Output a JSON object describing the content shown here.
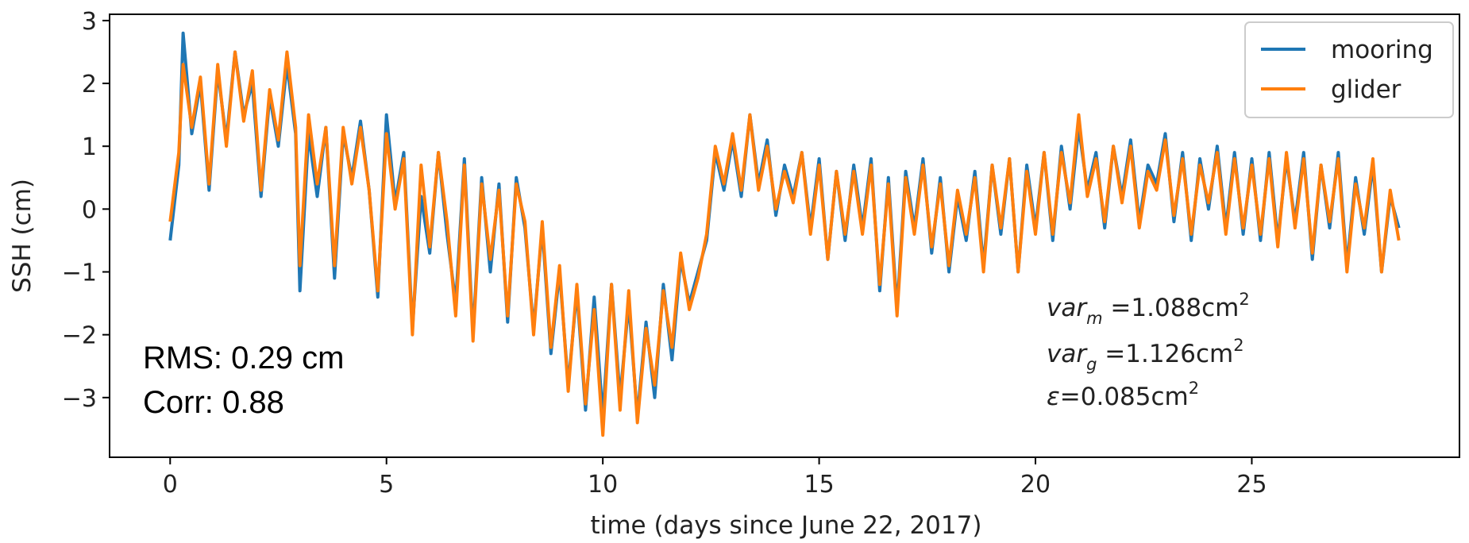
{
  "chart_data": {
    "type": "line",
    "title": "",
    "xlabel": "time (days since June 22, 2017)",
    "ylabel": "SSH (cm)",
    "xlim": [
      -1.4,
      29.8
    ],
    "ylim": [
      -3.95,
      3.1
    ],
    "xticks": [
      0,
      5,
      10,
      15,
      20,
      25
    ],
    "yticks": [
      3,
      2,
      1,
      0,
      -1,
      -2,
      -3
    ],
    "ytick_labels": [
      "3",
      "2",
      "1",
      "0",
      "−1",
      "−2",
      "−3"
    ],
    "grid": false,
    "legend_position": "top-right",
    "series": [
      {
        "name": "mooring",
        "color": "#1f77b4",
        "x": [
          0.0,
          0.2,
          0.3,
          0.5,
          0.7,
          0.9,
          1.1,
          1.3,
          1.5,
          1.7,
          1.9,
          2.1,
          2.3,
          2.5,
          2.7,
          2.9,
          3.0,
          3.2,
          3.4,
          3.6,
          3.8,
          4.0,
          4.2,
          4.4,
          4.6,
          4.8,
          5.0,
          5.2,
          5.4,
          5.6,
          5.8,
          6.0,
          6.2,
          6.4,
          6.6,
          6.8,
          7.0,
          7.2,
          7.4,
          7.6,
          7.8,
          8.0,
          8.2,
          8.4,
          8.6,
          8.8,
          9.0,
          9.2,
          9.4,
          9.6,
          9.8,
          10.0,
          10.2,
          10.4,
          10.6,
          10.8,
          11.0,
          11.2,
          11.4,
          11.6,
          11.8,
          12.0,
          12.2,
          12.4,
          12.6,
          12.8,
          13.0,
          13.2,
          13.4,
          13.6,
          13.8,
          14.0,
          14.2,
          14.4,
          14.6,
          14.8,
          15.0,
          15.2,
          15.4,
          15.6,
          15.8,
          16.0,
          16.2,
          16.4,
          16.6,
          16.8,
          17.0,
          17.2,
          17.4,
          17.6,
          17.8,
          18.0,
          18.2,
          18.4,
          18.6,
          18.8,
          19.0,
          19.2,
          19.4,
          19.6,
          19.8,
          20.0,
          20.2,
          20.4,
          20.6,
          20.8,
          21.0,
          21.2,
          21.4,
          21.6,
          21.8,
          22.0,
          22.2,
          22.4,
          22.6,
          22.8,
          23.0,
          23.2,
          23.4,
          23.6,
          23.8,
          24.0,
          24.2,
          24.4,
          24.6,
          24.8,
          25.0,
          25.2,
          25.4,
          25.6,
          25.8,
          26.0,
          26.2,
          26.4,
          26.6,
          26.8,
          27.0,
          27.2,
          27.4,
          27.6,
          27.8,
          28.0,
          28.2,
          28.4
        ],
        "y": [
          -0.5,
          0.7,
          2.8,
          1.2,
          2.0,
          0.3,
          2.2,
          1.1,
          2.5,
          1.5,
          2.0,
          0.2,
          1.8,
          1.0,
          2.3,
          1.2,
          -1.3,
          1.2,
          0.2,
          1.3,
          -1.1,
          1.2,
          0.5,
          1.4,
          0.3,
          -1.4,
          1.5,
          0.1,
          0.9,
          -1.9,
          0.2,
          -0.7,
          0.9,
          -0.4,
          -1.5,
          0.8,
          -2.0,
          0.5,
          -1.0,
          0.4,
          -1.8,
          0.5,
          -0.3,
          -1.9,
          -0.3,
          -2.3,
          -1.0,
          -2.8,
          -1.3,
          -3.2,
          -1.4,
          -3.3,
          -1.2,
          -3.0,
          -1.5,
          -3.3,
          -1.8,
          -3.0,
          -1.2,
          -2.4,
          -0.8,
          -1.5,
          -1.0,
          -0.5,
          0.9,
          0.3,
          1.1,
          0.2,
          1.5,
          0.4,
          1.1,
          -0.1,
          0.7,
          0.2,
          0.9,
          -0.3,
          0.8,
          -0.8,
          0.6,
          -0.5,
          0.7,
          -0.3,
          0.8,
          -1.3,
          0.5,
          -1.6,
          0.6,
          -0.3,
          0.8,
          -0.7,
          0.5,
          -1.0,
          0.2,
          -0.5,
          0.6,
          -0.9,
          0.7,
          -0.4,
          0.8,
          -1.0,
          0.7,
          -0.3,
          0.9,
          -0.5,
          1.0,
          0.0,
          1.3,
          0.3,
          0.9,
          -0.3,
          1.0,
          0.2,
          1.1,
          -0.2,
          0.7,
          0.4,
          1.2,
          -0.2,
          0.9,
          -0.5,
          0.8,
          0.0,
          1.0,
          -0.3,
          0.9,
          -0.4,
          0.8,
          -0.5,
          0.9,
          -0.5,
          0.8,
          -0.2,
          0.9,
          -0.8,
          0.7,
          -0.3,
          0.9,
          -0.9,
          0.5,
          -0.4,
          0.7,
          -1.0,
          0.2,
          -0.3
        ]
      },
      {
        "name": "glider",
        "color": "#ff7f0e",
        "x": [
          0.0,
          0.2,
          0.3,
          0.5,
          0.7,
          0.9,
          1.1,
          1.3,
          1.5,
          1.7,
          1.9,
          2.1,
          2.3,
          2.5,
          2.7,
          2.9,
          3.0,
          3.2,
          3.4,
          3.6,
          3.8,
          4.0,
          4.2,
          4.4,
          4.6,
          4.8,
          5.0,
          5.2,
          5.4,
          5.6,
          5.8,
          6.0,
          6.2,
          6.4,
          6.6,
          6.8,
          7.0,
          7.2,
          7.4,
          7.6,
          7.8,
          8.0,
          8.2,
          8.4,
          8.6,
          8.8,
          9.0,
          9.2,
          9.4,
          9.6,
          9.8,
          10.0,
          10.2,
          10.4,
          10.6,
          10.8,
          11.0,
          11.2,
          11.4,
          11.6,
          11.8,
          12.0,
          12.2,
          12.4,
          12.6,
          12.8,
          13.0,
          13.2,
          13.4,
          13.6,
          13.8,
          14.0,
          14.2,
          14.4,
          14.6,
          14.8,
          15.0,
          15.2,
          15.4,
          15.6,
          15.8,
          16.0,
          16.2,
          16.4,
          16.6,
          16.8,
          17.0,
          17.2,
          17.4,
          17.6,
          17.8,
          18.0,
          18.2,
          18.4,
          18.6,
          18.8,
          19.0,
          19.2,
          19.4,
          19.6,
          19.8,
          20.0,
          20.2,
          20.4,
          20.6,
          20.8,
          21.0,
          21.2,
          21.4,
          21.6,
          21.8,
          22.0,
          22.2,
          22.4,
          22.6,
          22.8,
          23.0,
          23.2,
          23.4,
          23.6,
          23.8,
          24.0,
          24.2,
          24.4,
          24.6,
          24.8,
          25.0,
          25.2,
          25.4,
          25.6,
          25.8,
          26.0,
          26.2,
          26.4,
          26.6,
          26.8,
          27.0,
          27.2,
          27.4,
          27.6,
          27.8,
          28.0,
          28.2,
          28.4
        ],
        "y": [
          -0.2,
          0.9,
          2.3,
          1.3,
          2.1,
          0.4,
          2.3,
          1.0,
          2.5,
          1.4,
          2.2,
          0.3,
          1.9,
          1.1,
          2.5,
          1.3,
          -0.9,
          1.5,
          0.4,
          1.3,
          -0.9,
          1.3,
          0.4,
          1.3,
          0.3,
          -1.3,
          1.2,
          0.0,
          0.8,
          -2.0,
          0.7,
          -0.6,
          0.9,
          -0.2,
          -1.7,
          0.7,
          -2.1,
          0.4,
          -0.8,
          0.3,
          -1.7,
          0.4,
          -0.2,
          -2.0,
          -0.2,
          -2.2,
          -0.9,
          -2.9,
          -1.2,
          -3.1,
          -1.6,
          -3.6,
          -1.2,
          -3.2,
          -1.3,
          -3.4,
          -1.9,
          -2.8,
          -1.3,
          -2.2,
          -0.7,
          -1.6,
          -1.1,
          -0.4,
          1.0,
          0.4,
          1.2,
          0.3,
          1.5,
          0.3,
          1.0,
          0.0,
          0.6,
          0.1,
          0.9,
          -0.4,
          0.7,
          -0.8,
          0.6,
          -0.4,
          0.6,
          -0.4,
          0.7,
          -1.2,
          0.4,
          -1.7,
          0.5,
          -0.4,
          0.7,
          -0.6,
          0.4,
          -0.9,
          0.3,
          -0.4,
          0.5,
          -1.0,
          0.7,
          -0.3,
          0.8,
          -1.0,
          0.6,
          -0.4,
          0.9,
          -0.4,
          0.9,
          0.1,
          1.5,
          0.2,
          0.8,
          -0.2,
          1.0,
          0.1,
          1.0,
          -0.3,
          0.6,
          0.3,
          1.1,
          -0.1,
          0.8,
          -0.4,
          0.7,
          0.1,
          0.9,
          -0.4,
          0.8,
          -0.3,
          0.7,
          -0.4,
          0.8,
          -0.6,
          0.9,
          -0.3,
          0.8,
          -0.7,
          0.7,
          -0.2,
          0.8,
          -1.0,
          0.4,
          -0.3,
          0.8,
          -1.0,
          0.3,
          -0.5
        ]
      }
    ],
    "annotations": {
      "rms": "RMS: 0.29 cm",
      "corr": "Corr: 0.88",
      "var_m": {
        "base": "var",
        "sub": "m",
        "value": " =1.088cm",
        "sup": "2"
      },
      "var_g": {
        "base": "var",
        "sub": "g",
        "value": " =1.126cm",
        "sup": "2"
      },
      "eps": {
        "base": "ε",
        "value": "=0.085cm",
        "sup": "2"
      }
    }
  }
}
